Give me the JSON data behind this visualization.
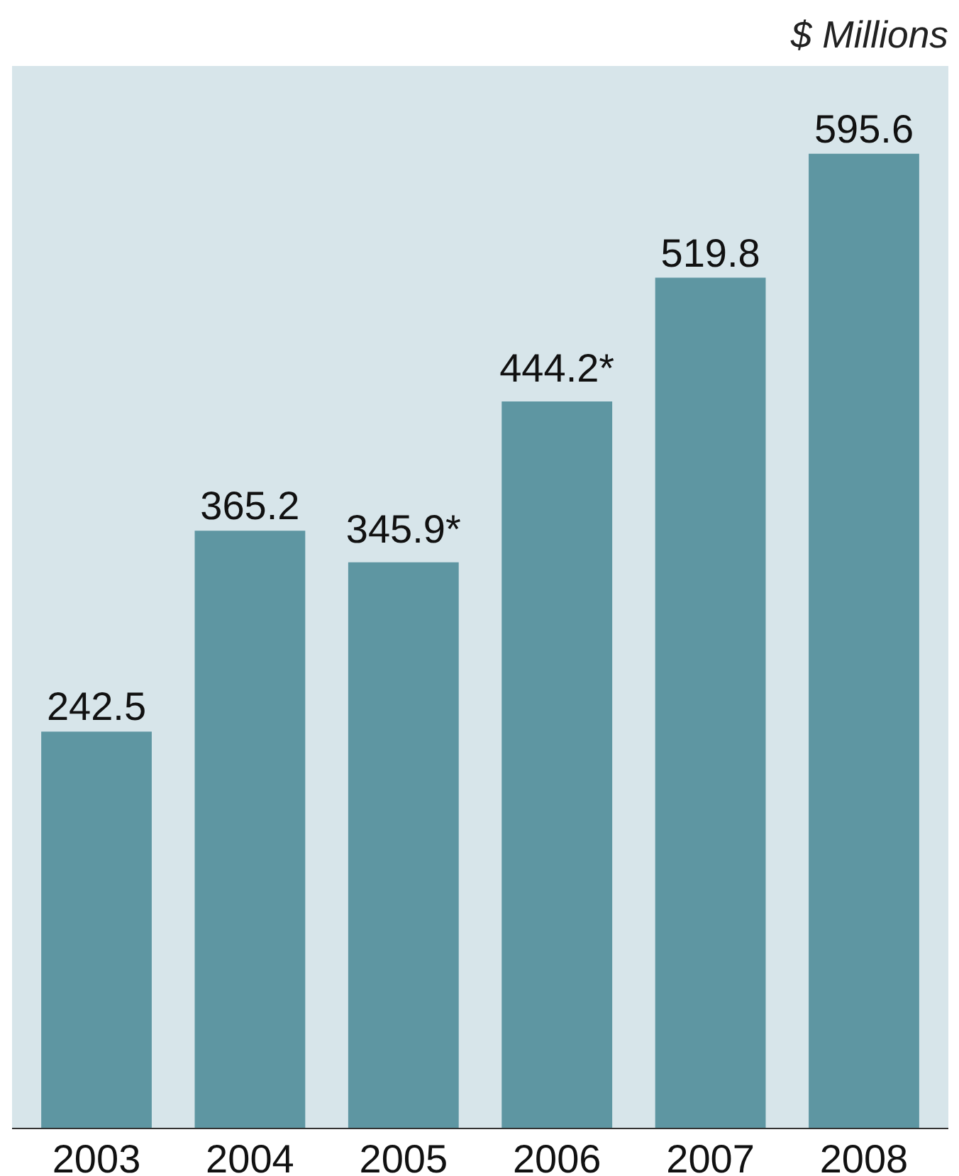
{
  "chart_data": {
    "type": "bar",
    "categories": [
      "2003",
      "2004",
      "2005",
      "2006",
      "2007",
      "2008"
    ],
    "values": [
      242.5,
      365.2,
      345.9,
      444.2,
      519.8,
      595.6
    ],
    "value_labels": [
      "242.5",
      "365.2",
      "345.9*",
      "444.2*",
      "519.8",
      "595.6"
    ],
    "color": "#5e96a2",
    "annotations": [
      "$ Millions"
    ],
    "grid": false
  }
}
